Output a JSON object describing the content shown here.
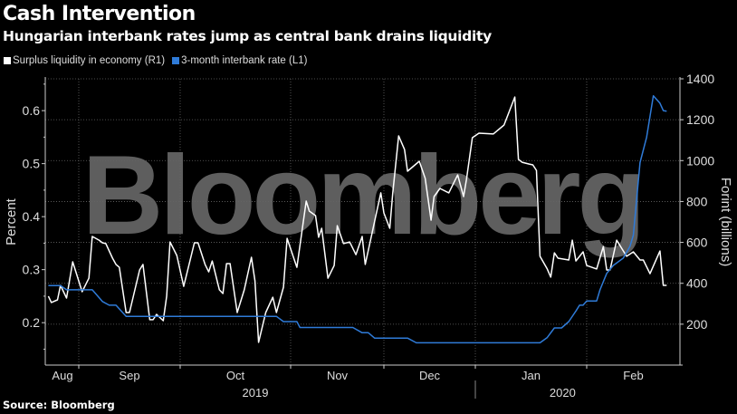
{
  "header": {
    "title": "Cash Intervention",
    "subtitle": "Hungarian interbank rates jump as central bank drains liquidity"
  },
  "footer": {
    "source": "Source: Bloomberg"
  },
  "watermark": "Bloomberg",
  "colors": {
    "background": "#000000",
    "surplus": "#ffffff",
    "rate": "#2f7bd8",
    "grid": "#555555",
    "watermark": "#5e5e5e"
  },
  "chart_data": {
    "type": "line",
    "title": "Cash Intervention",
    "subtitle": "Hungarian interbank rates jump as central bank drains liquidity",
    "legend_placement": "top-left",
    "grid": true,
    "x_axis": {
      "type": "date",
      "range": [
        "2019-08-21",
        "2020-02-29"
      ],
      "month_ticks": [
        {
          "date": "2019-08-01",
          "label": "Aug"
        },
        {
          "date": "2019-09-01",
          "label": "Sep"
        },
        {
          "date": "2019-10-01",
          "label": "Oct"
        },
        {
          "date": "2019-11-01",
          "label": "Nov"
        },
        {
          "date": "2019-12-01",
          "label": "Dec"
        },
        {
          "date": "2020-01-01",
          "label": "Jan"
        },
        {
          "date": "2020-02-01",
          "label": "Feb"
        }
      ],
      "year_labels": [
        {
          "label": "2019",
          "center": "2019-11-01"
        },
        {
          "label": "2020",
          "center": "2020-01-20"
        }
      ]
    },
    "y_left": {
      "label": "Percent",
      "ylim": [
        0.12,
        0.66
      ],
      "ticks": [
        0.2,
        0.3,
        0.4,
        0.5,
        0.6
      ],
      "tick_labels": [
        "0.2",
        "0.3",
        "0.4",
        "0.5",
        "0.6"
      ]
    },
    "y_right": {
      "label": "Forint (billions)",
      "ylim": [
        0,
        1400
      ],
      "ticks": [
        200,
        400,
        600,
        800,
        1000,
        1200,
        1400
      ],
      "tick_labels": [
        "200",
        "400",
        "600",
        "800",
        "1000",
        "1200",
        "1400"
      ]
    },
    "series": [
      {
        "name": "Surplus liquidity in economy (R1)",
        "axis": "right",
        "color": "#ffffff",
        "points": [
          [
            "2019-08-22",
            337
          ],
          [
            "2019-08-23",
            306
          ],
          [
            "2019-08-25",
            319
          ],
          [
            "2019-08-26",
            390
          ],
          [
            "2019-08-28",
            328
          ],
          [
            "2019-08-30",
            505
          ],
          [
            "2019-09-02",
            359
          ],
          [
            "2019-09-04",
            425
          ],
          [
            "2019-09-05",
            629
          ],
          [
            "2019-09-07",
            611
          ],
          [
            "2019-09-08",
            598
          ],
          [
            "2019-09-09",
            594
          ],
          [
            "2019-09-11",
            523
          ],
          [
            "2019-09-12",
            492
          ],
          [
            "2019-09-13",
            478
          ],
          [
            "2019-09-15",
            257
          ],
          [
            "2019-09-16",
            257
          ],
          [
            "2019-09-19",
            465
          ],
          [
            "2019-09-20",
            492
          ],
          [
            "2019-09-22",
            222
          ],
          [
            "2019-09-23",
            222
          ],
          [
            "2019-09-24",
            248
          ],
          [
            "2019-09-26",
            217
          ],
          [
            "2019-09-27",
            337
          ],
          [
            "2019-09-28",
            602
          ],
          [
            "2019-09-30",
            536
          ],
          [
            "2019-10-02",
            385
          ],
          [
            "2019-10-05",
            598
          ],
          [
            "2019-10-06",
            598
          ],
          [
            "2019-10-08",
            492
          ],
          [
            "2019-10-09",
            456
          ],
          [
            "2019-10-10",
            509
          ],
          [
            "2019-10-12",
            368
          ],
          [
            "2019-10-13",
            350
          ],
          [
            "2019-10-14",
            496
          ],
          [
            "2019-10-15",
            496
          ],
          [
            "2019-10-17",
            257
          ],
          [
            "2019-10-19",
            368
          ],
          [
            "2019-10-21",
            527
          ],
          [
            "2019-10-22",
            412
          ],
          [
            "2019-10-23",
            111
          ],
          [
            "2019-10-25",
            257
          ],
          [
            "2019-10-27",
            332
          ],
          [
            "2019-10-28",
            257
          ],
          [
            "2019-10-30",
            381
          ],
          [
            "2019-10-31",
            620
          ],
          [
            "2019-11-03",
            478
          ],
          [
            "2019-11-06",
            802
          ],
          [
            "2019-11-07",
            753
          ],
          [
            "2019-11-09",
            731
          ],
          [
            "2019-11-10",
            625
          ],
          [
            "2019-11-11",
            669
          ],
          [
            "2019-11-13",
            425
          ],
          [
            "2019-11-15",
            487
          ],
          [
            "2019-11-16",
            682
          ],
          [
            "2019-11-18",
            594
          ],
          [
            "2019-11-20",
            602
          ],
          [
            "2019-11-22",
            540
          ],
          [
            "2019-11-24",
            629
          ],
          [
            "2019-11-25",
            492
          ],
          [
            "2019-11-30",
            842
          ],
          [
            "2019-12-01",
            744
          ],
          [
            "2019-12-03",
            669
          ],
          [
            "2019-12-04",
            842
          ],
          [
            "2019-12-06",
            1121
          ],
          [
            "2019-12-08",
            1054
          ],
          [
            "2019-12-09",
            948
          ],
          [
            "2019-12-13",
            997
          ],
          [
            "2019-12-15",
            913
          ],
          [
            "2019-12-17",
            709
          ],
          [
            "2019-12-18",
            824
          ],
          [
            "2019-12-20",
            864
          ],
          [
            "2019-12-23",
            842
          ],
          [
            "2019-12-26",
            930
          ],
          [
            "2019-12-28",
            824
          ],
          [
            "2019-12-29",
            908
          ],
          [
            "2019-12-31",
            1112
          ],
          [
            "2020-01-02",
            1134
          ],
          [
            "2020-01-06",
            1130
          ],
          [
            "2020-01-09",
            1174
          ],
          [
            "2020-01-12",
            1311
          ],
          [
            "2020-01-13",
            1006
          ],
          [
            "2020-01-14",
            992
          ],
          [
            "2020-01-16",
            983
          ],
          [
            "2020-01-17",
            979
          ],
          [
            "2020-01-18",
            952
          ],
          [
            "2020-01-19",
            532
          ],
          [
            "2020-01-21",
            470
          ],
          [
            "2020-01-22",
            430
          ],
          [
            "2020-01-23",
            549
          ],
          [
            "2020-01-24",
            523
          ],
          [
            "2020-01-27",
            514
          ],
          [
            "2020-01-28",
            611
          ],
          [
            "2020-01-29",
            509
          ],
          [
            "2020-01-31",
            554
          ],
          [
            "2020-02-01",
            487
          ],
          [
            "2020-02-04",
            470
          ],
          [
            "2020-02-06",
            580
          ],
          [
            "2020-02-07",
            465
          ],
          [
            "2020-02-08",
            465
          ],
          [
            "2020-02-10",
            611
          ],
          [
            "2020-02-12",
            558
          ],
          [
            "2020-02-13",
            532
          ],
          [
            "2020-02-15",
            554
          ],
          [
            "2020-02-17",
            514
          ],
          [
            "2020-02-18",
            514
          ],
          [
            "2020-02-20",
            447
          ],
          [
            "2020-02-23",
            558
          ],
          [
            "2020-02-24",
            390
          ],
          [
            "2020-02-25",
            390
          ]
        ]
      },
      {
        "name": "3-month interbank rate (L1)",
        "axis": "left",
        "color": "#2f7bd8",
        "points": [
          [
            "2019-08-22",
            0.27
          ],
          [
            "2019-08-26",
            0.27
          ],
          [
            "2019-08-28",
            0.262
          ],
          [
            "2019-09-05",
            0.262
          ],
          [
            "2019-09-08",
            0.24
          ],
          [
            "2019-09-10",
            0.233
          ],
          [
            "2019-09-12",
            0.233
          ],
          [
            "2019-09-15",
            0.212
          ],
          [
            "2019-10-28",
            0.212
          ],
          [
            "2019-10-30",
            0.202
          ],
          [
            "2019-11-03",
            0.202
          ],
          [
            "2019-11-04",
            0.191
          ],
          [
            "2019-11-21",
            0.191
          ],
          [
            "2019-11-24",
            0.181
          ],
          [
            "2019-11-26",
            0.181
          ],
          [
            "2019-11-28",
            0.171
          ],
          [
            "2019-12-09",
            0.171
          ],
          [
            "2019-12-12",
            0.162
          ],
          [
            "2020-01-19",
            0.162
          ],
          [
            "2020-01-21",
            0.172
          ],
          [
            "2020-01-23",
            0.19
          ],
          [
            "2020-01-25",
            0.19
          ],
          [
            "2020-01-27",
            0.202
          ],
          [
            "2020-01-29",
            0.222
          ],
          [
            "2020-01-30",
            0.233
          ],
          [
            "2020-01-31",
            0.233
          ],
          [
            "2020-02-01",
            0.241
          ],
          [
            "2020-02-04",
            0.241
          ],
          [
            "2020-02-05",
            0.262
          ],
          [
            "2020-02-07",
            0.293
          ],
          [
            "2020-02-09",
            0.308
          ],
          [
            "2020-02-12",
            0.322
          ],
          [
            "2020-02-14",
            0.344
          ],
          [
            "2020-02-15",
            0.365
          ],
          [
            "2020-02-16",
            0.434
          ],
          [
            "2020-02-17",
            0.502
          ],
          [
            "2020-02-19",
            0.55
          ],
          [
            "2020-02-21",
            0.628
          ],
          [
            "2020-02-23",
            0.614
          ],
          [
            "2020-02-24",
            0.6
          ],
          [
            "2020-02-25",
            0.599
          ]
        ]
      }
    ]
  }
}
